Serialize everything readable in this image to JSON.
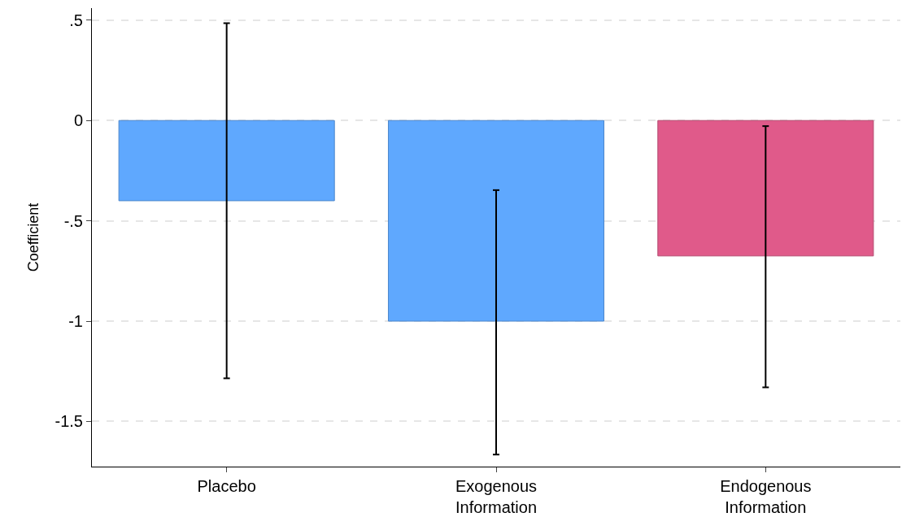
{
  "chart_data": {
    "type": "bar",
    "ylabel": "Coefficient",
    "categories": [
      "Placebo",
      "Exogenous\nInformation",
      "Endogenous\nInformation"
    ],
    "values": [
      -0.4,
      -1.0,
      -0.675
    ],
    "colors": [
      "#5fa8fe",
      "#5fa8fe",
      "#e05a8a"
    ],
    "errors": [
      [
        -1.285,
        0.485
      ],
      [
        -1.665,
        -0.347
      ],
      [
        -1.33,
        -0.028
      ]
    ],
    "ylim": [
      -1.725,
      0.56
    ],
    "yticks": [
      {
        "value": 0.5,
        "label": ".5"
      },
      0,
      {
        "value": -0.5,
        "label": "-.5"
      },
      -1,
      {
        "value": -1.5,
        "label": "-1.5"
      }
    ],
    "grid": "y",
    "legend": false
  }
}
